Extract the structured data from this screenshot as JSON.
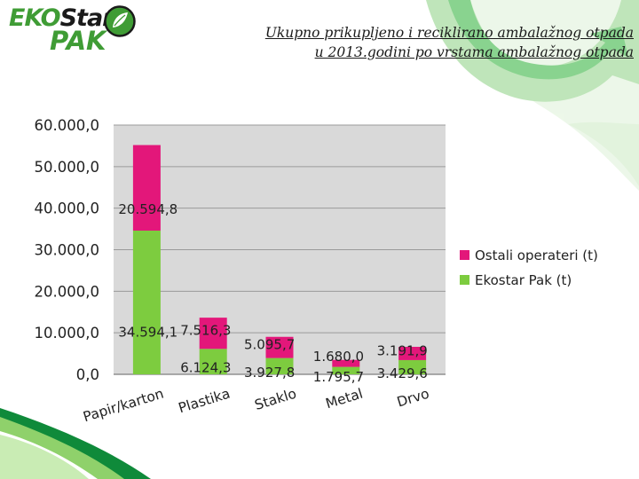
{
  "header": {
    "logo_line1_part1": "EKO",
    "logo_line1_part2": "Star",
    "logo_line2": "PAK",
    "title_line1": "Ukupno prikupljeno i reciklirano ambalažnog otpada",
    "title_line2": "u 2013.godini po vrstama ambalažnog otpada"
  },
  "colors": {
    "ekostar": "#7dcc3f",
    "ostali": "#e3177a",
    "plot_bg": "#d9d9d9",
    "grid": "#9a9a9a",
    "brand_green": "#3f9c35"
  },
  "chart_data": {
    "type": "bar",
    "stacked": true,
    "categories": [
      "Papir/karton",
      "Plastika",
      "Staklo",
      "Metal",
      "Drvo"
    ],
    "series": [
      {
        "name": "Ekostar Pak (t)",
        "color": "#7dcc3f",
        "values": [
          34594.1,
          6124.3,
          3927.8,
          1795.7,
          3429.6
        ],
        "labels": [
          "34.594,1",
          "6.124,3",
          "3.927,8",
          "1.795,7",
          "3.429,6"
        ]
      },
      {
        "name": "Ostali operateri (t)",
        "color": "#e3177a",
        "values": [
          20594.8,
          7516.3,
          5095.7,
          1680.0,
          3191.9
        ],
        "labels": [
          "20.594,8",
          "7.516,3",
          "5.095,7",
          "1.680,0",
          "3.191,9"
        ]
      }
    ],
    "yticks": [
      0,
      10000,
      20000,
      30000,
      40000,
      50000,
      60000
    ],
    "ytick_labels": [
      "0,0",
      "10.000,0",
      "20.000,0",
      "30.000,0",
      "40.000,0",
      "50.000,0",
      "60.000,0"
    ],
    "ylim": [
      0,
      60000
    ],
    "grid": true,
    "legend_position": "right",
    "xlabel": "",
    "ylabel": ""
  }
}
